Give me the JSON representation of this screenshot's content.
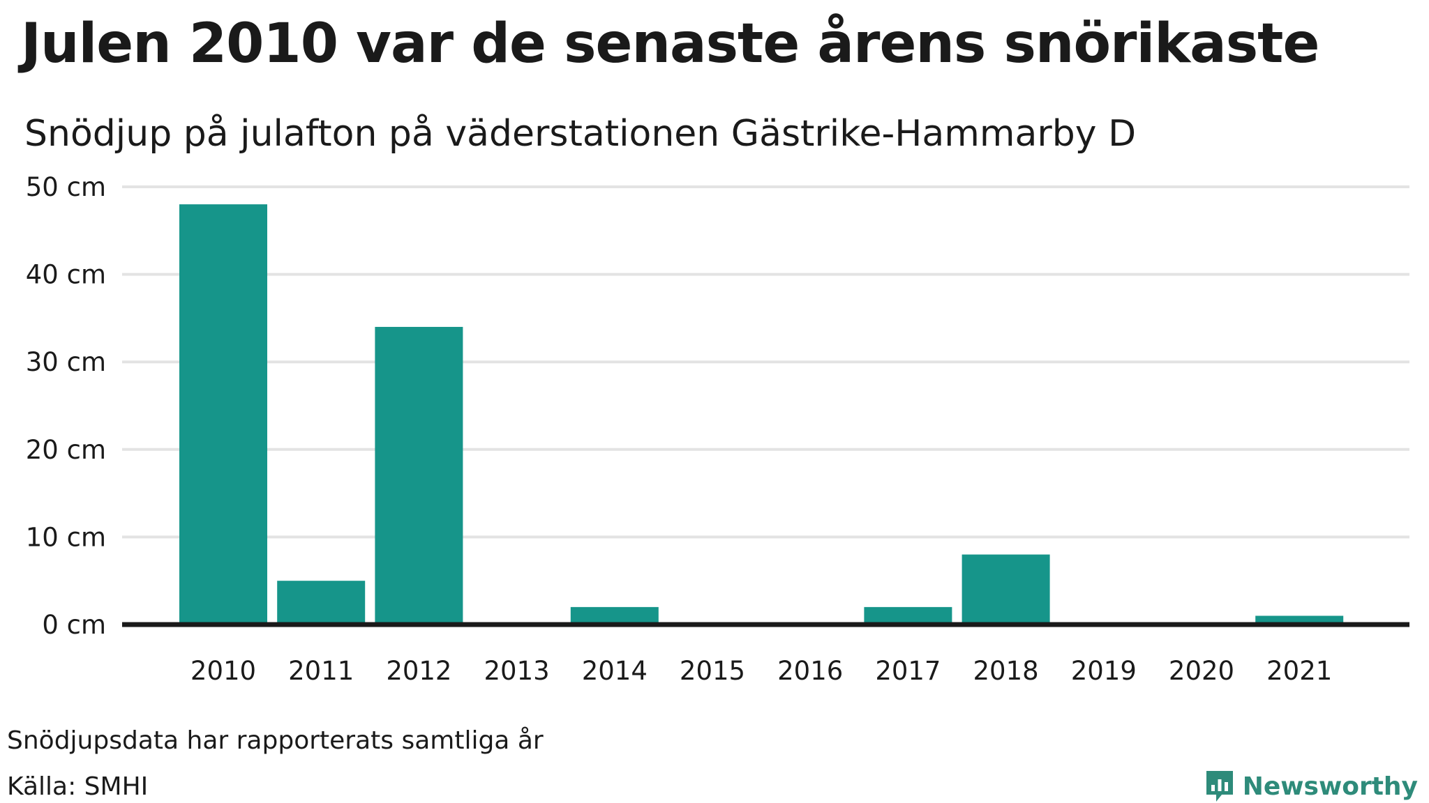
{
  "header": {
    "title": "Julen 2010 var de senaste årens snörikaste",
    "subtitle": "Snödjup på julafton på väderstationen Gästrike-Hammarby D"
  },
  "footer": {
    "note": "Snödjupsdata har rapporterats samtliga år",
    "source": "Källa: SMHI",
    "brand": "Newsworthy",
    "brand_icon": "bar-chart-speech-bubble-icon"
  },
  "colors": {
    "bar": "#16958a",
    "grid": "#e3e3e3",
    "axis": "#1a1a1a",
    "text": "#1a1a1a",
    "brand": "#2e8b7a"
  },
  "chart_data": {
    "type": "bar",
    "title": "Julen 2010 var de senaste årens snörikaste",
    "subtitle": "Snödjup på julafton på väderstationen Gästrike-Hammarby D",
    "categories": [
      "2010",
      "2011",
      "2012",
      "2013",
      "2014",
      "2015",
      "2016",
      "2017",
      "2018",
      "2019",
      "2020",
      "2021"
    ],
    "values": [
      48,
      5,
      34,
      0,
      2,
      0,
      0,
      2,
      8,
      0,
      0,
      1
    ],
    "unit": "cm",
    "ylim": [
      0,
      50
    ],
    "yticks": [
      0,
      10,
      20,
      30,
      40,
      50
    ],
    "ytick_labels": [
      "0 cm",
      "10 cm",
      "20 cm",
      "30 cm",
      "40 cm",
      "50 cm"
    ],
    "xlabel": "",
    "ylabel": "",
    "grid": true,
    "legend": "none"
  }
}
